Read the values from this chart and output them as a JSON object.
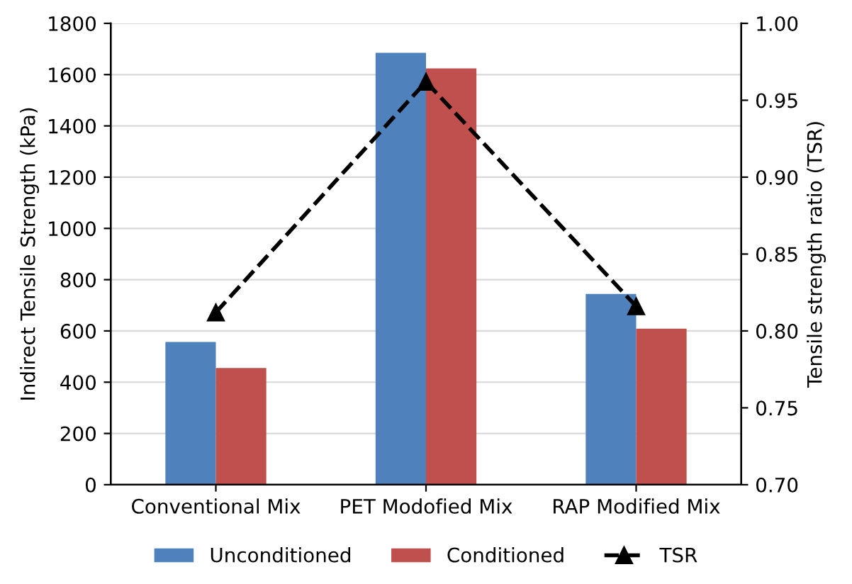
{
  "chart_data": {
    "type": "bar",
    "categories": [
      "Conventional Mix",
      "PET Modofied Mix",
      "RAP Modified Mix"
    ],
    "series": [
      {
        "name": "Unconditioned",
        "color": "#4f81bd",
        "values": [
          557,
          1685,
          744
        ]
      },
      {
        "name": "Conditioned",
        "color": "#c0504d",
        "values": [
          455,
          1624,
          609
        ]
      },
      {
        "name": "TSR",
        "type": "line",
        "axis": "y2",
        "color": "#000000",
        "marker": "triangle",
        "line_style": "dashed",
        "values": [
          0.812,
          0.962,
          0.816
        ]
      }
    ],
    "ylabel": "Indirect Tensile Strength (kPa)",
    "y2label": "Tensile strength ratio (TSR)",
    "ylim": [
      0,
      1800
    ],
    "yticks": [
      0,
      200,
      400,
      600,
      800,
      1000,
      1200,
      1400,
      1600,
      1800
    ],
    "y2lim": [
      0.7,
      1.0
    ],
    "y2ticks": [
      {
        "value": 0.7,
        "label": "0.70"
      },
      {
        "value": 0.75,
        "label": "0.75"
      },
      {
        "value": 0.8,
        "label": "0.80"
      },
      {
        "value": 0.85,
        "label": "0.85"
      },
      {
        "value": 0.9,
        "label": "0.90"
      },
      {
        "value": 0.95,
        "label": "0.95"
      },
      {
        "value": 1.0,
        "label": "1.00"
      }
    ],
    "grid": "y",
    "legend": "bottom"
  }
}
